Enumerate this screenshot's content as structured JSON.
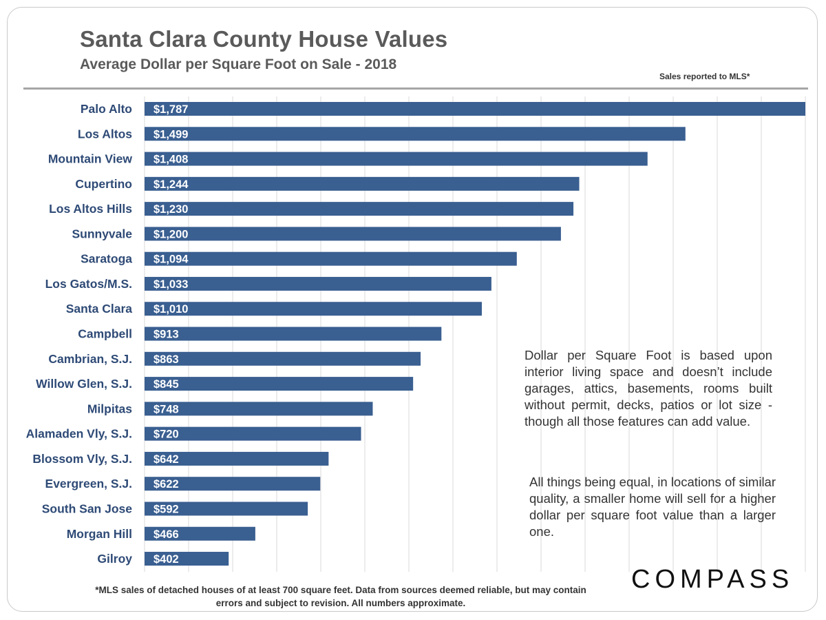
{
  "header": {
    "title": "Santa Clara County House Values",
    "subtitle": "Average Dollar per Square Foot on Sale - 2018",
    "source_note": "Sales reported  to MLS*"
  },
  "notes": {
    "definition": "Dollar per Square Foot is based upon interior living space and doesn’t include garages, attics, basements, rooms built without permit, decks, patios or lot size - though all those features can add value.",
    "comparison": "All things being equal, in locations of similar quality, a smaller home will sell for a higher dollar per square foot value than a larger one."
  },
  "footnote": "*MLS sales of detached houses of at least 700 square feet. Data from sources deemed reliable, but may contain errors and subject to revision. All numbers approximate.",
  "logo_text": "COMPASS",
  "colors": {
    "bar": "#3a5f91",
    "grid": "#d9d9d9",
    "category_text": "#2e4a76"
  },
  "chart_data": {
    "type": "bar",
    "orientation": "horizontal",
    "title": "Santa Clara County House Values",
    "subtitle": "Average Dollar per Square Foot on Sale - 2018",
    "categories": [
      "Palo Alto",
      "Los Altos",
      "Mountain View",
      "Cupertino",
      "Los Altos Hills",
      "Sunnyvale",
      "Saratoga",
      "Los Gatos/M.S.",
      "Santa Clara",
      "Campbell",
      "Cambrian, S.J.",
      "Willow Glen, S.J.",
      "Milpitas",
      "Alamaden Vly, S.J.",
      "Blossom Vly, S.J.",
      "Evergreen, S.J.",
      "South San Jose",
      "Morgan Hill",
      "Gilroy"
    ],
    "values": [
      1787,
      1499,
      1408,
      1244,
      1230,
      1200,
      1094,
      1033,
      1010,
      913,
      863,
      845,
      748,
      720,
      642,
      622,
      592,
      466,
      402
    ],
    "data_labels": [
      "$1,787",
      "$1,499",
      "$1,408",
      "$1,244",
      "$1,230",
      "$1,200",
      "$1,094",
      "$1,033",
      "$1,010",
      "$913",
      "$863",
      "$845",
      "$748",
      "$720",
      "$642",
      "$622",
      "$592",
      "$466",
      "$402"
    ],
    "xlim": [
      200,
      1787
    ],
    "grid": true,
    "legend": "none"
  }
}
